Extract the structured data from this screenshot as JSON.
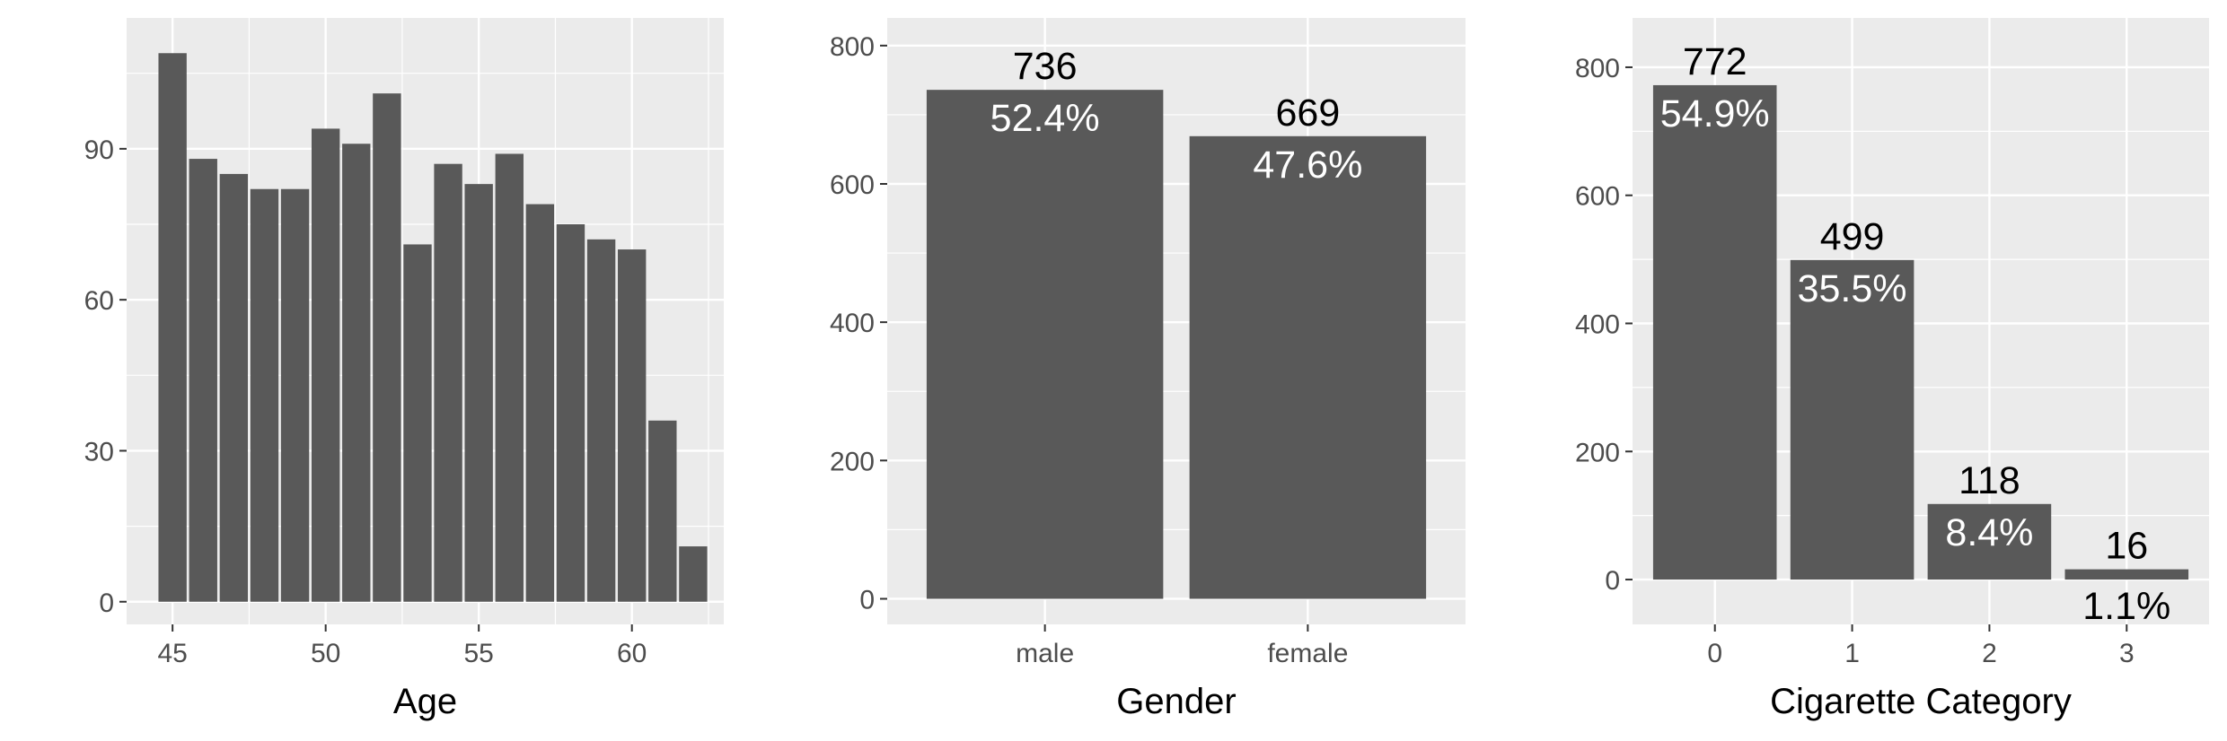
{
  "chart_data": [
    {
      "type": "bar",
      "xlabel": "Age",
      "ylabel": "",
      "xlim": [
        43.5,
        63
      ],
      "ylim": [
        -4.5,
        116
      ],
      "xticks": [
        45,
        50,
        55,
        60
      ],
      "yticks": [
        0,
        30,
        60,
        90
      ],
      "x": [
        45,
        46,
        47,
        48,
        49,
        50,
        51,
        52,
        53,
        54,
        55,
        56,
        57,
        58,
        59,
        60,
        61,
        62
      ],
      "values": [
        109,
        88,
        85,
        82,
        82,
        94,
        91,
        101,
        71,
        87,
        83,
        89,
        79,
        75,
        72,
        70,
        36,
        11
      ],
      "bar_color": "#595959",
      "panel_color": "#ebebeb",
      "grid": true
    },
    {
      "type": "bar",
      "xlabel": "Gender",
      "ylabel": "",
      "ylim": [
        -37,
        840
      ],
      "yticks": [
        0,
        200,
        400,
        600,
        800
      ],
      "categories": [
        "male",
        "female"
      ],
      "values": [
        736,
        669
      ],
      "count_labels": [
        "736",
        "669"
      ],
      "percent_labels": [
        "52.4%",
        "47.6%"
      ],
      "bar_color": "#595959",
      "panel_color": "#ebebeb",
      "grid": true
    },
    {
      "type": "bar",
      "xlabel": "Cigarette Category",
      "ylabel": "",
      "ylim": [
        -70,
        877
      ],
      "yticks": [
        0,
        200,
        400,
        600,
        800
      ],
      "categories": [
        "0",
        "1",
        "2",
        "3"
      ],
      "values": [
        772,
        499,
        118,
        16
      ],
      "count_labels": [
        "772",
        "499",
        "118",
        "16"
      ],
      "percent_labels": [
        "54.9%",
        "35.5%",
        "8.4%",
        "1.1%"
      ],
      "bar_color": "#595959",
      "panel_color": "#ebebeb",
      "grid": true
    }
  ]
}
